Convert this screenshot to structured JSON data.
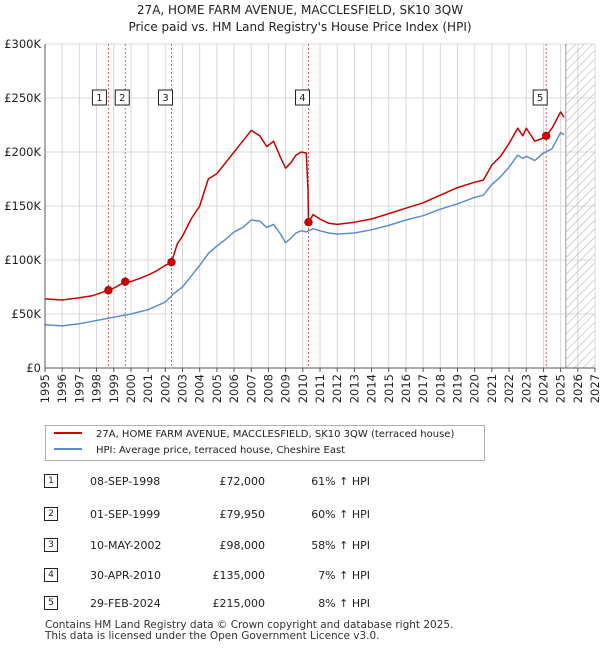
{
  "title": {
    "line1": "27A, HOME FARM AVENUE, MACCLESFIELD, SK10 3QW",
    "line2": "Price paid vs. HM Land Registry's House Price Index (HPI)"
  },
  "colors": {
    "property": "#cc0000",
    "hpi": "#5b8fcc",
    "marker": "#cc0000",
    "vline": "#d86060",
    "hatch": "#aaaaaa"
  },
  "chart_data": {
    "type": "line",
    "title": "Price paid vs. HM Land Registry's House Price Index (HPI)",
    "xlim": [
      1995,
      2027
    ],
    "ylim": [
      0,
      300000
    ],
    "x_ticks": [
      "1995",
      "1996",
      "1997",
      "1998",
      "1999",
      "2000",
      "2001",
      "2002",
      "2003",
      "2004",
      "2005",
      "2006",
      "2007",
      "2008",
      "2009",
      "2010",
      "2011",
      "2012",
      "2013",
      "2014",
      "2015",
      "2016",
      "2017",
      "2018",
      "2019",
      "2020",
      "2021",
      "2022",
      "2023",
      "2024",
      "2025",
      "2026",
      "2027"
    ],
    "y_ticks": [
      {
        "value": 0,
        "label": "£0"
      },
      {
        "value": 50000,
        "label": "£50K"
      },
      {
        "value": 100000,
        "label": "£100K"
      },
      {
        "value": 150000,
        "label": "£150K"
      },
      {
        "value": 200000,
        "label": "£200K"
      },
      {
        "value": 250000,
        "label": "£250K"
      },
      {
        "value": 300000,
        "label": "£300K"
      }
    ],
    "future_from": 2025.3,
    "series": [
      {
        "name": "27A, HOME FARM AVENUE, MACCLESFIELD, SK10 3QW (terraced house)",
        "key": "property",
        "x": [
          1995.0,
          1996.0,
          1997.0,
          1997.8,
          1998.69,
          1999.0,
          1999.67,
          2000.0,
          2000.5,
          2001.0,
          2001.5,
          2002.0,
          2002.36,
          2002.7,
          2003.0,
          2003.5,
          2004.0,
          2004.5,
          2005.0,
          2005.5,
          2006.0,
          2006.5,
          2007.0,
          2007.5,
          2007.9,
          2008.3,
          2008.7,
          2009.0,
          2009.3,
          2009.6,
          2009.9,
          2010.2,
          2010.3,
          2010.33,
          2010.6,
          2011.0,
          2011.5,
          2012.0,
          2013.0,
          2014.0,
          2015.0,
          2016.0,
          2017.0,
          2018.0,
          2019.0,
          2020.0,
          2020.5,
          2021.0,
          2021.5,
          2022.0,
          2022.5,
          2022.8,
          2023.0,
          2023.5,
          2024.0,
          2024.16,
          2024.5,
          2025.0,
          2025.2
        ],
        "y": [
          64000,
          63000,
          65000,
          67000,
          72000,
          74000,
          79950,
          80000,
          83000,
          86000,
          90000,
          95000,
          98000,
          115000,
          122000,
          138000,
          150000,
          175000,
          180000,
          190000,
          200000,
          210000,
          220000,
          215000,
          205000,
          210000,
          195000,
          185000,
          190000,
          197000,
          200000,
          199000,
          165000,
          135000,
          142000,
          138000,
          134000,
          133000,
          135000,
          138000,
          143000,
          148000,
          153000,
          160000,
          167000,
          172000,
          174000,
          188000,
          196000,
          208000,
          222000,
          215000,
          222000,
          210000,
          213000,
          215000,
          222000,
          237000,
          232000
        ]
      },
      {
        "name": "HPI: Average price, terraced house, Cheshire East",
        "key": "hpi",
        "x": [
          1995.0,
          1996.0,
          1997.0,
          1998.0,
          1999.0,
          2000.0,
          2001.0,
          2002.0,
          2002.5,
          2003.0,
          2003.5,
          2004.0,
          2004.5,
          2005.0,
          2005.5,
          2006.0,
          2006.5,
          2007.0,
          2007.5,
          2007.9,
          2008.3,
          2008.7,
          2009.0,
          2009.3,
          2009.6,
          2009.9,
          2010.2,
          2010.6,
          2011.0,
          2011.5,
          2012.0,
          2013.0,
          2014.0,
          2015.0,
          2016.0,
          2017.0,
          2018.0,
          2019.0,
          2020.0,
          2020.5,
          2021.0,
          2021.5,
          2022.0,
          2022.5,
          2022.8,
          2023.0,
          2023.5,
          2024.0,
          2024.5,
          2025.0,
          2025.2
        ],
        "y": [
          40000,
          39000,
          41000,
          44000,
          47000,
          50000,
          54000,
          61000,
          69000,
          75000,
          85000,
          95000,
          106000,
          113000,
          119000,
          126000,
          130000,
          137000,
          136000,
          130000,
          133000,
          124000,
          116000,
          120000,
          125000,
          127000,
          126000,
          129000,
          127000,
          125000,
          124000,
          125000,
          128000,
          132000,
          137000,
          141000,
          147000,
          152000,
          158000,
          160000,
          170000,
          177000,
          186000,
          197000,
          194000,
          196000,
          192000,
          199000,
          203000,
          218000,
          216000
        ]
      }
    ],
    "sales": [
      {
        "n": "1",
        "x": 1998.69,
        "price": 72000
      },
      {
        "n": "2",
        "x": 1999.67,
        "price": 79950
      },
      {
        "n": "3",
        "x": 2002.36,
        "price": 98000
      },
      {
        "n": "4",
        "x": 2010.33,
        "price": 135000
      },
      {
        "n": "5",
        "x": 2024.16,
        "price": 215000
      }
    ]
  },
  "legend": {
    "property_label": "27A, HOME FARM AVENUE, MACCLESFIELD, SK10 3QW (terraced house)",
    "hpi_label": "HPI: Average price, terraced house, Cheshire East"
  },
  "sales_table": [
    {
      "n": "1",
      "date": "08-SEP-1998",
      "price": "£72,000",
      "hpi": "61% ↑ HPI"
    },
    {
      "n": "2",
      "date": "01-SEP-1999",
      "price": "£79,950",
      "hpi": "60% ↑ HPI"
    },
    {
      "n": "3",
      "date": "10-MAY-2002",
      "price": "£98,000",
      "hpi": "58% ↑ HPI"
    },
    {
      "n": "4",
      "date": "30-APR-2010",
      "price": "£135,000",
      "hpi": "7% ↑ HPI"
    },
    {
      "n": "5",
      "date": "29-FEB-2024",
      "price": "£215,000",
      "hpi": "8% ↑ HPI"
    }
  ],
  "footer": {
    "line1": "Contains HM Land Registry data © Crown copyright and database right 2025.",
    "line2": "This data is licensed under the Open Government Licence v3.0."
  }
}
